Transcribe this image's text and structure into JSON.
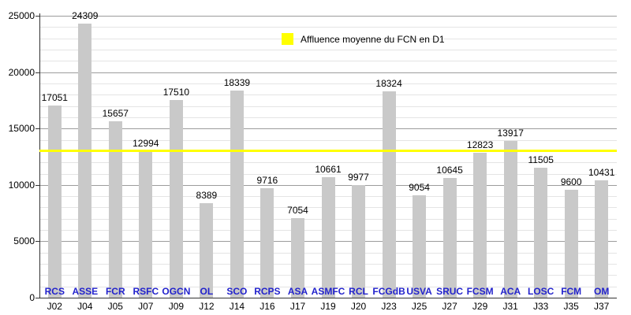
{
  "chart_data": {
    "type": "bar",
    "title": "",
    "xlabel": "",
    "ylabel": "",
    "ylim": [
      0,
      25000
    ],
    "y_major_step": 5000,
    "y_minor_step": 1000,
    "grid": true,
    "legend": {
      "label": "Affluence moyenne du FCN en D1",
      "swatch_color": "#ffff00",
      "position": "top-center"
    },
    "matchdays": [
      "J02",
      "J04",
      "J05",
      "J07",
      "J09",
      "J12",
      "J14",
      "J16",
      "J17",
      "J19",
      "J20",
      "J23",
      "J25",
      "J27",
      "J29",
      "J31",
      "J33",
      "J35",
      "J37"
    ],
    "opponents": [
      "RCS",
      "ASSE",
      "FCR",
      "RSFC",
      "OGCN",
      "OL",
      "SCO",
      "RCPS",
      "ASA",
      "ASMFC",
      "RCL",
      "FCGdB",
      "USVA",
      "SRUC",
      "FCSM",
      "ACA",
      "LOSC",
      "FCM",
      "OM"
    ],
    "values": [
      17051,
      24309,
      15657,
      12994,
      17510,
      8389,
      18339,
      9716,
      7054,
      10661,
      9977,
      18324,
      9054,
      10645,
      12823,
      13917,
      11505,
      9600,
      10431
    ],
    "average_line": {
      "value": 13050,
      "color": "#ffff00"
    },
    "bar_color": "#c9c9c9",
    "opponent_label_color": "#2222cc",
    "axis_color": "#333333",
    "major_grid_color": "#9c9c9c",
    "minor_grid_color": "#e4e4e4"
  }
}
